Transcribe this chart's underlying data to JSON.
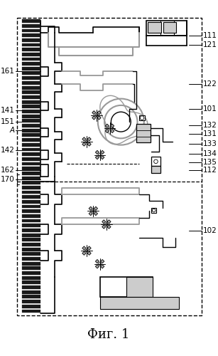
{
  "title": "Фиг. 1",
  "bg_color": "#ffffff",
  "border_color": "#000000",
  "fig_w": 3.07,
  "fig_h": 5.0,
  "dpi": 100
}
